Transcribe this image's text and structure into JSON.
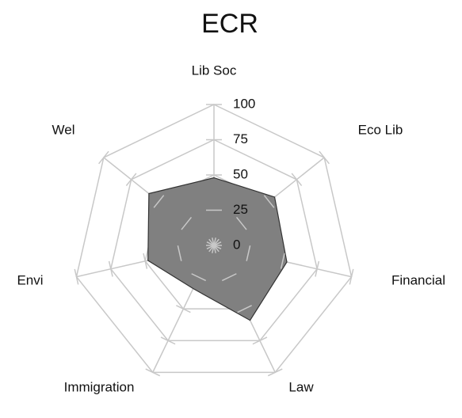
{
  "chart_data": {
    "type": "radar",
    "title": "ECR",
    "categories": [
      "Lib Soc",
      "Eco Lib",
      "Financial",
      "Law",
      "Immigration",
      "Envi",
      "Wel"
    ],
    "values": [
      48,
      55,
      53,
      59,
      34,
      48,
      59
    ],
    "color": "#808080",
    "ylim": [
      0,
      100
    ],
    "yticks": [
      0,
      25,
      50,
      75,
      100
    ],
    "grid": true
  }
}
